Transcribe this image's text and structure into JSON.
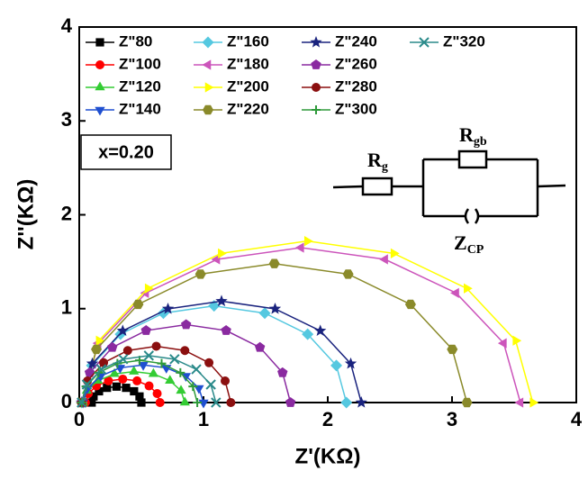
{
  "chart_data": {
    "type": "scatter-line",
    "x_label": "Z'(KΩ)",
    "y_label": "Z''(KΩ)",
    "xlim": [
      0,
      4
    ],
    "ylim": [
      0,
      4
    ],
    "xticks": [
      0,
      1,
      2,
      3,
      4
    ],
    "yticks": [
      0,
      1,
      2,
      3,
      4
    ],
    "annotation": "x=0.20",
    "circuit_labels": [
      {
        "main": "R",
        "sub": "g"
      },
      {
        "main": "R",
        "sub": "gb"
      },
      {
        "main": "Z",
        "sub": "CP"
      }
    ],
    "series": [
      {
        "name": "Z\"80",
        "color": "#000000",
        "marker": "square",
        "x": [
          0.1,
          0.115,
          0.159,
          0.223,
          0.3,
          0.377,
          0.441,
          0.485,
          0.5
        ],
        "values": [
          0,
          0.065,
          0.12,
          0.157,
          0.17,
          0.157,
          0.12,
          0.065,
          0
        ]
      },
      {
        "name": "Z\"100",
        "color": "#ff0000",
        "marker": "circle",
        "x": [
          0.05,
          0.073,
          0.138,
          0.235,
          0.35,
          0.465,
          0.562,
          0.627,
          0.65
        ],
        "values": [
          0,
          0.096,
          0.177,
          0.231,
          0.25,
          0.231,
          0.177,
          0.096,
          0
        ]
      },
      {
        "name": "Z\"120",
        "color": "#33cc33",
        "marker": "triangle-up",
        "x": [
          0.03,
          0.061,
          0.15,
          0.283,
          0.44,
          0.597,
          0.73,
          0.819,
          0.85
        ],
        "values": [
          0,
          0.126,
          0.233,
          0.305,
          0.33,
          0.305,
          0.233,
          0.126,
          0
        ]
      },
      {
        "name": "Z\"140",
        "color": "#1f4fd0",
        "marker": "triangle-down",
        "x": [
          0.03,
          0.067,
          0.172,
          0.329,
          0.515,
          0.701,
          0.858,
          0.963,
          1.0
        ],
        "values": [
          0,
          0.153,
          0.283,
          0.37,
          0.4,
          0.37,
          0.283,
          0.153,
          0
        ]
      },
      {
        "name": "Z\"160",
        "color": "#55c8e0",
        "marker": "diamond",
        "x": [
          0.02,
          0.101,
          0.332,
          0.677,
          1.085,
          1.493,
          1.838,
          2.069,
          2.15
        ],
        "values": [
          0,
          0.394,
          0.728,
          0.952,
          1.03,
          0.952,
          0.728,
          0.394,
          0
        ]
      },
      {
        "name": "Z\"180",
        "color": "#cc55bb",
        "marker": "triangle-left",
        "x": [
          0.02,
          0.154,
          0.537,
          1.109,
          1.785,
          2.461,
          3.033,
          3.416,
          3.55
        ],
        "values": [
          0,
          0.632,
          1.167,
          1.525,
          1.65,
          1.525,
          1.167,
          0.632,
          0
        ]
      },
      {
        "name": "Z\"200",
        "color": "#ffff00",
        "marker": "triangle-right",
        "x": [
          0.02,
          0.158,
          0.552,
          1.14,
          1.835,
          2.53,
          3.118,
          3.512,
          3.65
        ],
        "values": [
          0,
          0.659,
          1.216,
          1.589,
          1.72,
          1.589,
          1.216,
          0.659,
          0
        ]
      },
      {
        "name": "Z\"220",
        "color": "#8a8a2a",
        "marker": "hexagon",
        "x": [
          0.02,
          0.138,
          0.474,
          0.976,
          1.57,
          2.164,
          2.666,
          3.002,
          3.12
        ],
        "values": [
          0,
          0.567,
          1.046,
          1.368,
          1.48,
          1.368,
          1.046,
          0.567,
          0
        ]
      },
      {
        "name": "Z\"240",
        "color": "#1a237e",
        "marker": "star",
        "x": [
          0.02,
          0.105,
          0.35,
          0.714,
          1.145,
          1.576,
          1.94,
          2.185,
          2.27
        ],
        "values": [
          0,
          0.414,
          0.764,
          0.998,
          1.08,
          0.998,
          0.764,
          0.414,
          0
        ]
      },
      {
        "name": "Z\"260",
        "color": "#8a2aa0",
        "marker": "pentagon",
        "x": [
          0.02,
          0.084,
          0.266,
          0.538,
          0.86,
          1.182,
          1.454,
          1.636,
          1.7
        ],
        "values": [
          0,
          0.318,
          0.587,
          0.767,
          0.83,
          0.767,
          0.587,
          0.318,
          0
        ]
      },
      {
        "name": "Z\"280",
        "color": "#8b0f0f",
        "marker": "circle",
        "x": [
          0.02,
          0.066,
          0.196,
          0.39,
          0.62,
          0.85,
          1.044,
          1.174,
          1.22
        ],
        "values": [
          0,
          0.23,
          0.424,
          0.554,
          0.6,
          0.554,
          0.424,
          0.23,
          0
        ]
      },
      {
        "name": "Z\"300",
        "color": "#2e9a3a",
        "marker": "plus",
        "x": [
          0.02,
          0.055,
          0.156,
          0.307,
          0.485,
          0.663,
          0.814,
          0.915,
          0.95
        ],
        "values": [
          0,
          0.172,
          0.318,
          0.416,
          0.45,
          0.416,
          0.318,
          0.172,
          0
        ]
      },
      {
        "name": "Z\"320",
        "color": "#2a8a8a",
        "marker": "cross",
        "x": [
          0.02,
          0.061,
          0.178,
          0.353,
          0.56,
          0.767,
          0.942,
          1.059,
          1.1
        ],
        "values": [
          0,
          0.192,
          0.354,
          0.462,
          0.5,
          0.462,
          0.354,
          0.192,
          0
        ]
      }
    ]
  }
}
